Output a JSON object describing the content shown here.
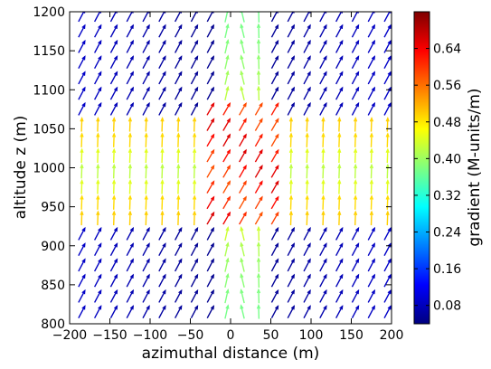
{
  "chart_data": {
    "type": "quiver",
    "xlabel": "azimuthal distance (m)",
    "ylabel": "altitude z (m)",
    "xlim": [
      -200,
      200
    ],
    "ylim": [
      800,
      1200
    ],
    "xticks": [
      "−200",
      "−150",
      "−100",
      "−50",
      "0",
      "50",
      "100",
      "150",
      "200"
    ],
    "yticks": [
      "800",
      "850",
      "900",
      "950",
      "1000",
      "1050",
      "1100",
      "1150",
      "1200"
    ],
    "grid": false,
    "colormap": "jet",
    "colorbar": {
      "label": "gradient (M-units/m)",
      "range": [
        0.04,
        0.72
      ],
      "ticks": [
        "0.08",
        "0.16",
        "0.24",
        "0.32",
        "0.40",
        "0.48",
        "0.56",
        "0.64"
      ]
    },
    "arrow_field": {
      "x_columns": [
        -185,
        -165,
        -145,
        -125,
        -105,
        -85,
        -65,
        -45,
        -25,
        -5,
        15,
        35,
        55,
        75,
        95,
        115,
        135,
        155,
        175,
        195
      ],
      "z_rows": [
        1195,
        1175,
        1155,
        1135,
        1115,
        1095,
        1075,
        1055,
        1035,
        1015,
        995,
        975,
        955,
        935,
        915,
        895,
        875,
        855,
        835,
        815
      ],
      "inner_region": {
        "x": [
          -40,
          60
        ],
        "z": [
          925,
          1075
        ],
        "magnitude": 0.62
      },
      "duct_band": {
        "z": [
          935,
          1065
        ],
        "magnitude": 0.46
      },
      "outer_magnitude": 0.07,
      "center_column_magnitude": 0.36
    }
  }
}
